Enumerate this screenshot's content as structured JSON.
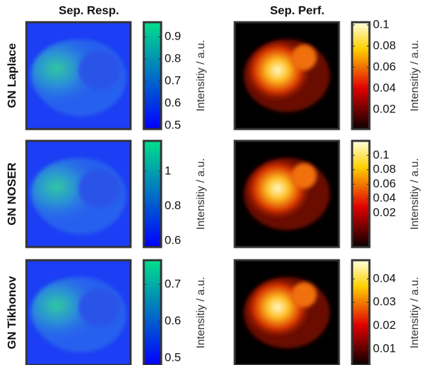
{
  "column_titles": [
    "Sep. Resp.",
    "Sep. Perf."
  ],
  "rows": [
    {
      "label": "GN Laplace",
      "colorbars": [
        {
          "colormap": "winter",
          "clim": [
            0.484,
            0.966
          ],
          "ticks": [
            0.5,
            0.6,
            0.7,
            0.8,
            0.9
          ],
          "label": "Intensitiy / a.u."
        },
        {
          "colormap": "hot",
          "clim": [
            0.0016,
            0.1026
          ],
          "ticks": [
            0.02,
            0.04,
            0.06,
            0.08,
            0.1
          ],
          "label": "Intensitiy / a.u."
        }
      ]
    },
    {
      "label": "GN NOSER",
      "colorbars": [
        {
          "colormap": "winter",
          "clim": [
            0.564,
            1.176
          ],
          "ticks": [
            0.6,
            0.8,
            1
          ],
          "label": "Intensitiy / a.u."
        },
        {
          "colormap": "hot",
          "clim": [
            -0.027,
            0.12
          ],
          "ticks": [
            0.02,
            0.04,
            0.06,
            0.08,
            0.1
          ],
          "label": "Intensitiy / a.u."
        }
      ]
    },
    {
      "label": "GN Tikhonov",
      "colorbars": [
        {
          "colormap": "winter",
          "clim": [
            0.481,
            0.766
          ],
          "ticks": [
            0.5,
            0.6,
            0.7
          ],
          "label": "Intensitiy / a.u."
        },
        {
          "colormap": "hot",
          "clim": [
            0.0032,
            0.048
          ],
          "ticks": [
            0.01,
            0.02,
            0.03,
            0.04
          ],
          "label": "Intensitiy / a.u."
        }
      ]
    }
  ]
}
